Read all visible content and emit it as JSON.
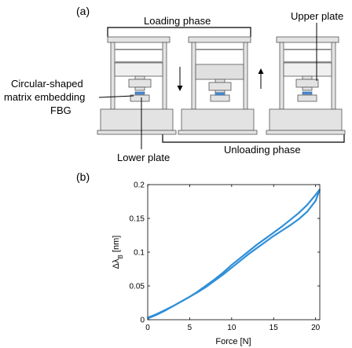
{
  "panel_a": {
    "label": "(a)",
    "loading_phase": "Loading phase",
    "unloading_phase": "Unloading phase",
    "upper_plate": "Upper plate",
    "lower_plate": "Lower plate",
    "matrix_line1": "Circular-shaped",
    "matrix_line2": "matrix embedding",
    "matrix_line3": "FBG"
  },
  "panel_b": {
    "label": "(b)"
  },
  "colors": {
    "series": "#2f8fd8",
    "machine_fill": "#e3e3e3",
    "machine_stroke": "#555555",
    "sample": "#4a90d9"
  },
  "chart_data": {
    "type": "line",
    "xlabel": "Force [N]",
    "ylabel_main": "Δλ",
    "ylabel_sub": "B",
    "ylabel_unit": " [nm]",
    "xlim": [
      0,
      20.5
    ],
    "ylim": [
      0,
      0.2
    ],
    "xticks": [
      0,
      5,
      10,
      15,
      20
    ],
    "yticks": [
      0,
      0.05,
      0.1,
      0.15,
      0.2
    ],
    "xtick_labels": [
      "0",
      "5",
      "10",
      "15",
      "20"
    ],
    "ytick_labels": [
      "0",
      "0.05",
      "0.1",
      "0.15",
      "0.2"
    ],
    "grid": false,
    "series": [
      {
        "x": [
          0,
          1,
          2,
          3,
          4,
          5,
          6,
          7,
          8,
          9,
          10,
          11,
          12,
          13,
          14,
          15,
          16,
          17,
          18,
          19,
          20,
          20.5
        ],
        "y": [
          0.003,
          0.008,
          0.014,
          0.02,
          0.027,
          0.034,
          0.042,
          0.051,
          0.06,
          0.07,
          0.081,
          0.091,
          0.101,
          0.111,
          0.12,
          0.129,
          0.138,
          0.148,
          0.158,
          0.17,
          0.185,
          0.193
        ]
      },
      {
        "x": [
          20.5,
          20,
          19,
          18,
          17,
          16,
          15,
          14,
          13,
          12,
          11,
          10,
          9,
          8,
          7,
          6,
          5,
          4,
          3,
          2,
          1,
          0
        ],
        "y": [
          0.193,
          0.176,
          0.16,
          0.149,
          0.14,
          0.132,
          0.124,
          0.115,
          0.106,
          0.097,
          0.087,
          0.077,
          0.067,
          0.058,
          0.049,
          0.041,
          0.034,
          0.027,
          0.02,
          0.013,
          0.007,
          0.002
        ]
      }
    ]
  }
}
